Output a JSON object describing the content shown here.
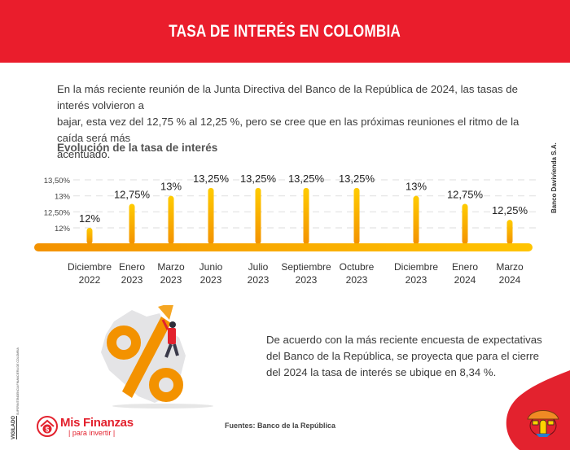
{
  "header": {
    "title": "TASA DE INTERÉS EN COLOMBIA"
  },
  "intro": {
    "lines": [
      "En la más reciente reunión de la Junta Directiva del Banco de la República de 2024, las tasas de interés volvieron a",
      "bajar, esta vez del 12,75 % al 12,25 %, pero se cree que en las próximas reuniones el ritmo de la caída será más",
      "acentuado."
    ]
  },
  "side_label": "Banco Davivienda S.A.",
  "chart_data": {
    "type": "bar",
    "title": "Evolución de la tasa de interés",
    "xlabel": "",
    "ylabel": "",
    "ylim": [
      11.5,
      13.5
    ],
    "grid": true,
    "y_ticks": [
      {
        "value": 13.5,
        "label": "13,50%"
      },
      {
        "value": 13.0,
        "label": "13%"
      },
      {
        "value": 12.5,
        "label": "12,50%"
      },
      {
        "value": 12.0,
        "label": "12%"
      }
    ],
    "categories": [
      [
        "Diciembre",
        "2022"
      ],
      [
        "Enero",
        "2023"
      ],
      [
        "Marzo",
        "2023"
      ],
      [
        "Junio",
        "2023"
      ],
      [
        "Julio",
        "2023"
      ],
      [
        "Septiembre",
        "2023"
      ],
      [
        "Octubre",
        "2023"
      ],
      [
        "Diciembre",
        "2023"
      ],
      [
        "Enero",
        "2024"
      ],
      [
        "Marzo",
        "2024"
      ]
    ],
    "values": [
      12.0,
      12.75,
      13.0,
      13.25,
      13.25,
      13.25,
      13.25,
      13.0,
      12.75,
      12.25
    ],
    "data_labels": [
      "12%",
      "12,75%",
      "13%",
      "13,25%",
      "13,25%",
      "13,25%",
      "13,25%",
      "13%",
      "12,75%",
      "12,25%"
    ],
    "colors": {
      "bar_top": "#ffcc00",
      "bar_bottom": "#f39200",
      "axis_left": "#f39200",
      "axis_right": "#ffc400",
      "grid": "#e3e3e3"
    }
  },
  "projection": {
    "lines": [
      "De acuerdo con la más reciente encuesta de expectativas",
      "del Banco de la República, se proyecta que para el cierre",
      "del 2024 la tasa de interés se ubique en 8,34 %."
    ]
  },
  "sources": "Fuentes: Banco de la República",
  "brand": {
    "name": "Mis Finanzas",
    "tagline": "|  para invertir  |",
    "color": "#e3222e"
  },
  "vigilado": {
    "label": "VIGILADO",
    "sub": "SUPERINTENDENCIA FINANCIERA DE COLOMBIA"
  },
  "illustration": {
    "symbol": "%"
  }
}
